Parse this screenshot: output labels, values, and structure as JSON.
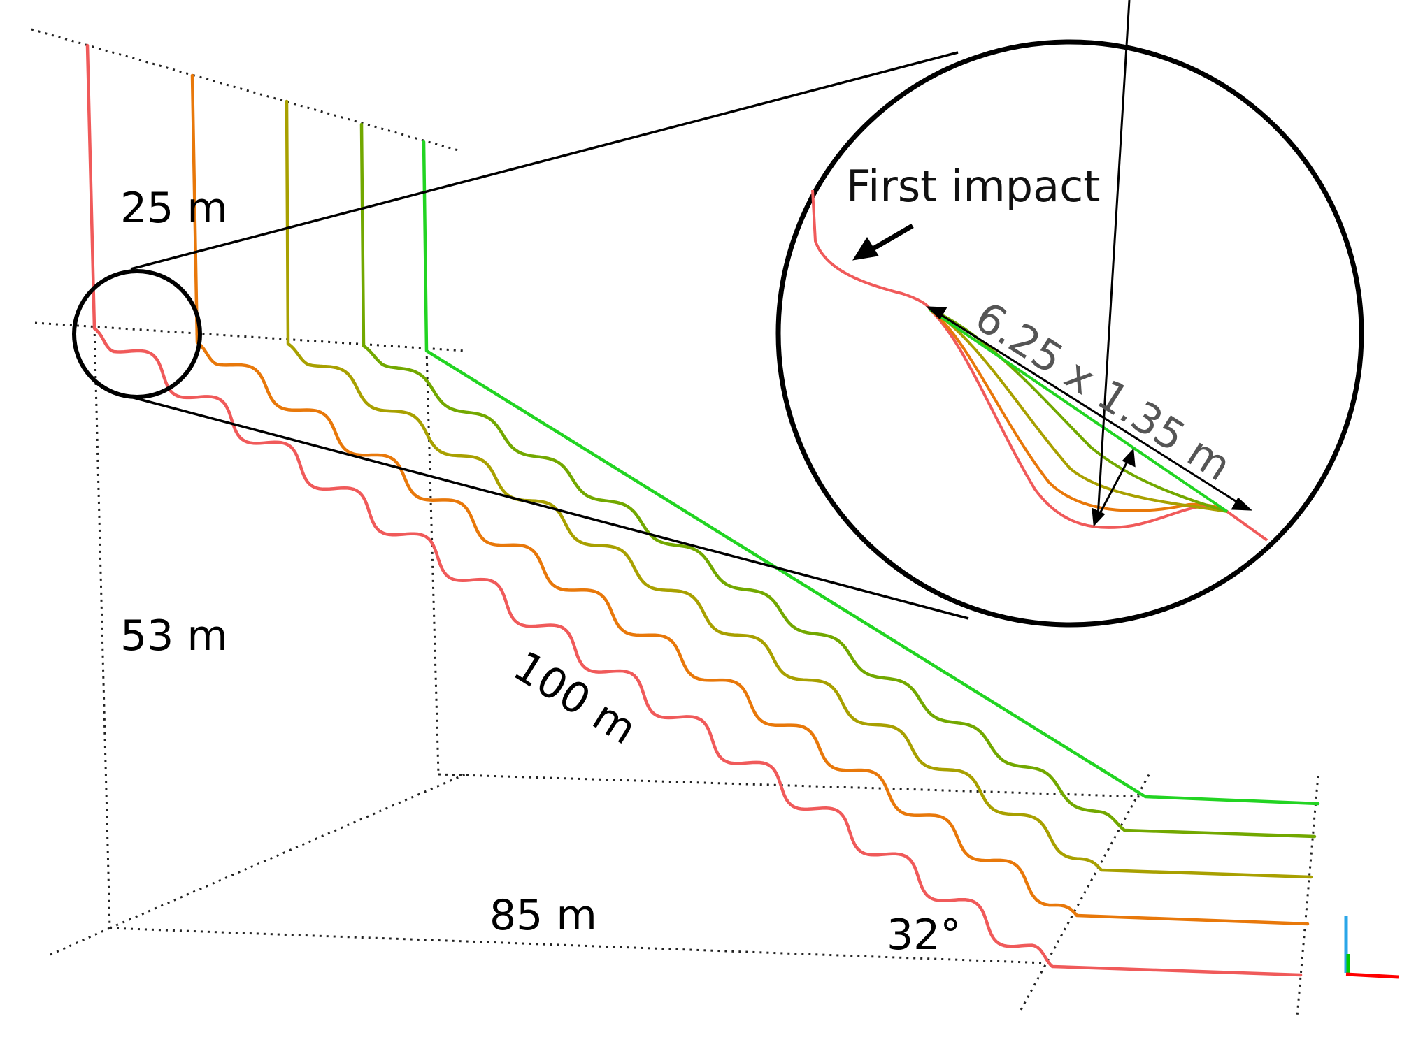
{
  "colors": {
    "profile_1": "#f05a5a",
    "profile_2": "#e8780a",
    "profile_3": "#a8a000",
    "profile_4": "#72a800",
    "profile_5": "#22d422",
    "axis_red": "#ff0000",
    "axis_green": "#00c800",
    "axis_blue": "#2aa6e8"
  },
  "labels": {
    "top_height": "25 m",
    "slope_height": "53 m",
    "slope_length": "100 m",
    "horizontal_length": "85 m",
    "slope_angle": "32°",
    "zoom_dimension": "6.25 x 1.35 m",
    "first_impact": "First impact"
  },
  "icons": {
    "zoom": "magnifier-circle",
    "arrow": "arrow-down-left-icon",
    "axes": "xyz-axes-icon"
  }
}
